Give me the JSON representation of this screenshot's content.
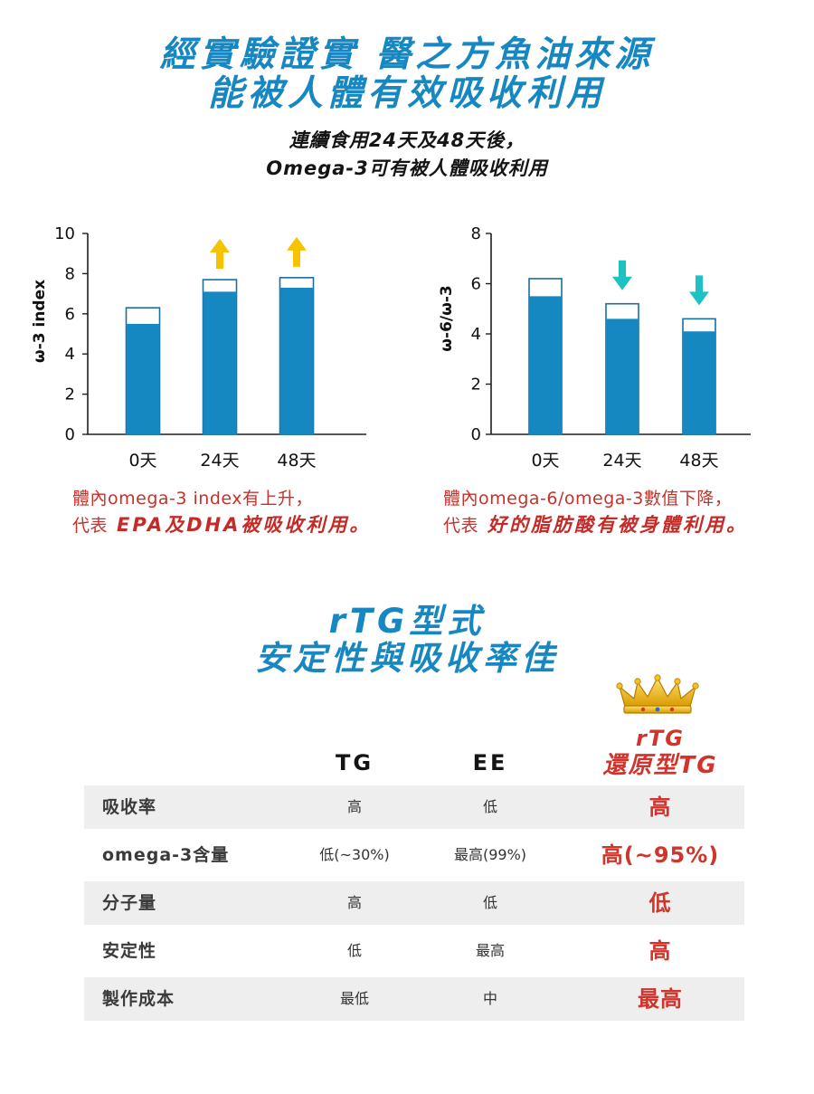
{
  "header": {
    "title_line1": "經實驗證實 醫之方魚油來源",
    "title_line2": "能被人體有效吸收利用",
    "subtitle_line1": "連續食用24天及48天後，",
    "subtitle_line2": "Omega-3可有被人體吸收利用"
  },
  "colors": {
    "accent_blue": "#1787c2",
    "highlight_red": "#c8312b",
    "table_row_shade": "#eeeeee"
  },
  "chart_data": [
    {
      "type": "bar",
      "ylabel": "ω-3 index",
      "ylim": [
        0,
        10
      ],
      "yticks": [
        0,
        2,
        4,
        6,
        8,
        10
      ],
      "grid": false,
      "categories": [
        "0天",
        "24天",
        "48天"
      ],
      "series": [
        {
          "values": [
            5.5,
            7.1,
            7.3
          ],
          "color": "#1587c1"
        },
        {
          "values": [
            6.3,
            7.7,
            7.8
          ],
          "color": "#ffffff",
          "stroke": "#1b6e9e"
        }
      ],
      "trend_arrows": [
        null,
        "up-arrow-icon",
        "up-arrow-icon"
      ],
      "arrow_color": "#f6c300",
      "caption_line1": "體內omega-3 index有上升，",
      "caption_line2_prefix": "代表",
      "caption_line2_emphasis": "EPA及DHA被吸收利用。"
    },
    {
      "type": "bar",
      "ylabel": "ω-6/ω-3",
      "ylim": [
        0,
        8
      ],
      "yticks": [
        0,
        2,
        4,
        6,
        8
      ],
      "grid": false,
      "categories": [
        "0天",
        "24天",
        "48天"
      ],
      "series": [
        {
          "values": [
            5.5,
            4.6,
            4.1
          ],
          "color": "#1587c1"
        },
        {
          "values": [
            6.2,
            5.2,
            4.6
          ],
          "color": "#ffffff",
          "stroke": "#1b6e9e"
        }
      ],
      "trend_arrows": [
        null,
        "down-arrow-icon",
        "down-arrow-icon"
      ],
      "arrow_color": "#1fc2c4",
      "caption_line1": "體內omega-6/omega-3數值下降，",
      "caption_line2_prefix": "代表",
      "caption_line2_emphasis": "好的脂肪酸有被身體利用。"
    }
  ],
  "rtg_section": {
    "title_line1": "rTG型式",
    "title_line2": "安定性與吸收率佳",
    "crown_icon": "crown-icon",
    "table": {
      "headers": {
        "tg": "TG",
        "ee": "EE",
        "rtg_line1": "rTG",
        "rtg_line2": "還原型TG"
      },
      "rows": [
        {
          "label": "吸收率",
          "tg": "高",
          "ee": "低",
          "rtg": "高"
        },
        {
          "label": "omega-3含量",
          "tg": "低(~30%)",
          "ee": "最高(99%)",
          "rtg": "高(~95%)"
        },
        {
          "label": "分子量",
          "tg": "高",
          "ee": "低",
          "rtg": "低"
        },
        {
          "label": "安定性",
          "tg": "低",
          "ee": "最高",
          "rtg": "高"
        },
        {
          "label": "製作成本",
          "tg": "最低",
          "ee": "中",
          "rtg": "最高"
        }
      ]
    }
  }
}
